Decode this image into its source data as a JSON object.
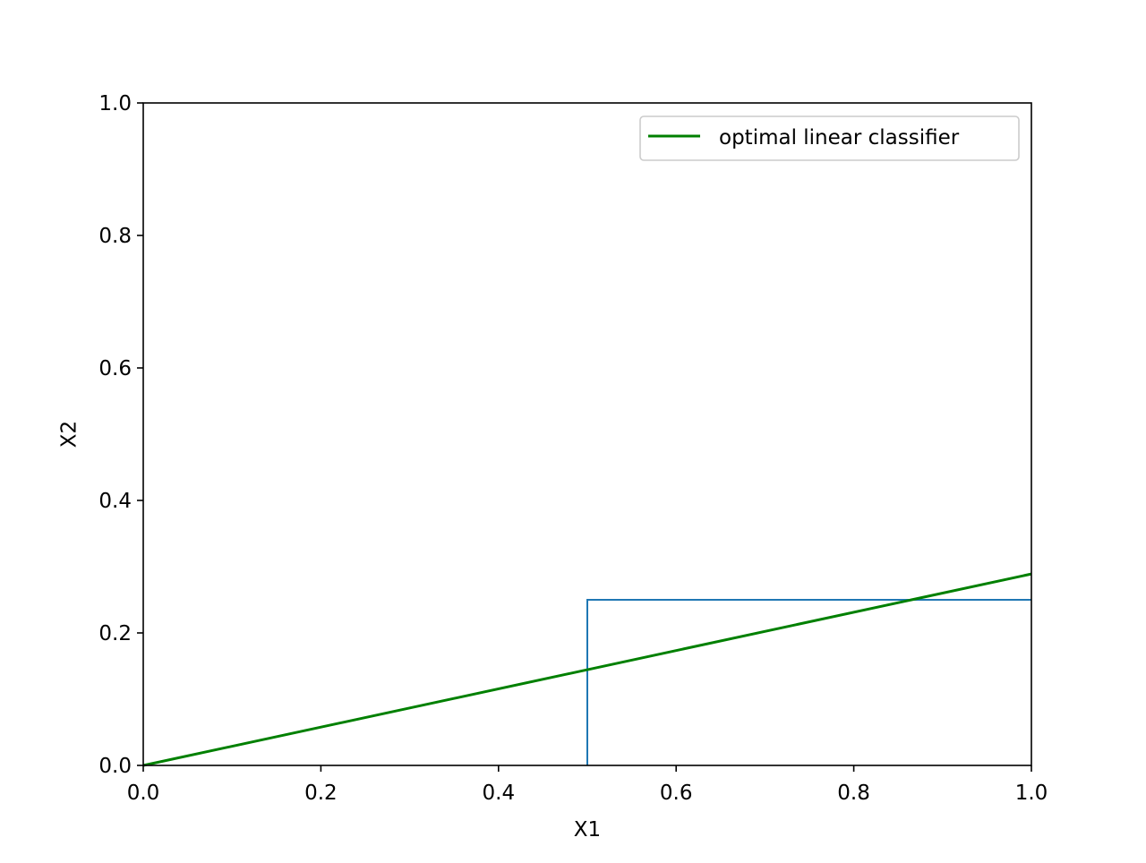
{
  "chart_data": {
    "type": "line",
    "title": "",
    "xlabel": "X1",
    "ylabel": "X2",
    "xlim": [
      0.0,
      1.0
    ],
    "ylim": [
      0.0,
      1.0
    ],
    "x_ticks": [
      "0.0",
      "0.2",
      "0.4",
      "0.6",
      "0.8",
      "1.0"
    ],
    "y_ticks": [
      "0.0",
      "0.2",
      "0.4",
      "0.6",
      "0.8",
      "1.0"
    ],
    "grid": false,
    "legend_position": "upper right",
    "series": [
      {
        "name": "optimal linear classifier",
        "color": "#008000",
        "x": [
          0.0,
          1.0
        ],
        "y": [
          0.0,
          0.289
        ]
      },
      {
        "color": "#1f77b4",
        "x": [
          0.5,
          0.5,
          1.0
        ],
        "y": [
          0.0,
          0.25,
          0.25
        ]
      }
    ]
  }
}
